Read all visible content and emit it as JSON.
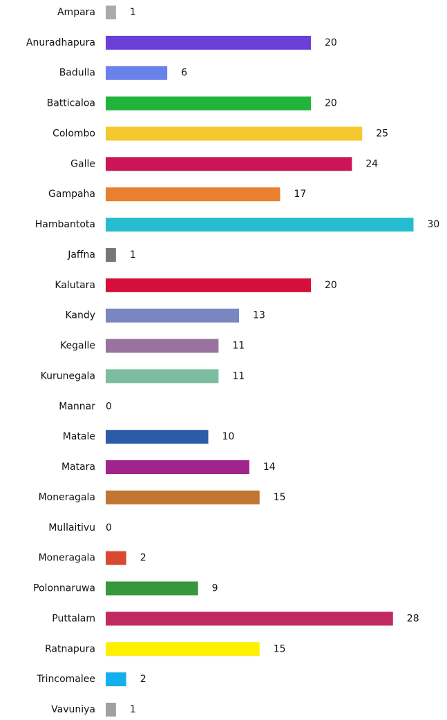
{
  "chart_data": {
    "type": "bar",
    "categories": [
      "Ampara",
      "Anuradhapura",
      "Badulla",
      "Batticaloa",
      "Colombo",
      "Galle",
      "Gampaha",
      "Hambantota",
      "Jaffna",
      "Kalutara",
      "Kandy",
      "Kegalle",
      "Kurunegala",
      "Mannar",
      "Matale",
      "Matara",
      "Moneragala",
      "Mullaitivu",
      "Moneragala",
      "Polonnaruwa",
      "Puttalam",
      "Ratnapura",
      "Trincomalee",
      "Vavuniya"
    ],
    "values": [
      1,
      20,
      6,
      20,
      25,
      24,
      17,
      30,
      1,
      20,
      13,
      11,
      11,
      0,
      10,
      14,
      15,
      0,
      2,
      9,
      28,
      15,
      2,
      1
    ],
    "colors": [
      "#aaaaaa",
      "#6a3fd8",
      "#6a80ea",
      "#22b43a",
      "#f4c92e",
      "#cc1458",
      "#e88030",
      "#26bcd0",
      "#777777",
      "#d40f3a",
      "#7a86c0",
      "#9a72a0",
      "#7cbca0",
      "#888888",
      "#2b5ca8",
      "#a0248e",
      "#c07530",
      "#888888",
      "#d84a30",
      "#36983c",
      "#c02a60",
      "#fff000",
      "#14b0ec",
      "#a0a0a0"
    ]
  }
}
